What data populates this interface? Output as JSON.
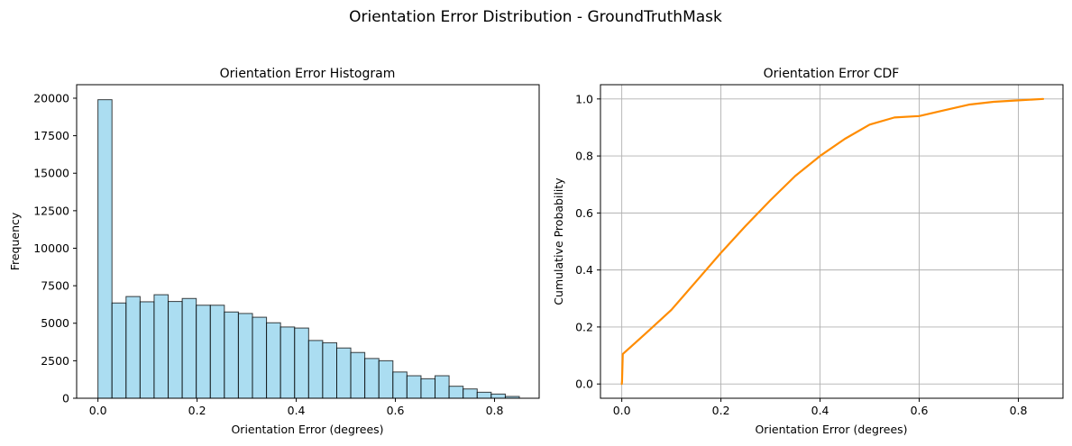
{
  "suptitle": "Orientation Error Distribution - GroundTruthMask",
  "chart_data": [
    {
      "type": "bar",
      "title": "Orientation Error Histogram",
      "xlabel": "Orientation Error (degrees)",
      "ylabel": "Frequency",
      "xlim": [
        -0.043,
        0.89
      ],
      "ylim": [
        0,
        20900
      ],
      "xticks": [
        0.0,
        0.2,
        0.4,
        0.6,
        0.8
      ],
      "xtick_labels": [
        "0.0",
        "0.2",
        "0.4",
        "0.6",
        "0.8"
      ],
      "yticks": [
        0,
        2500,
        5000,
        7500,
        10000,
        12500,
        15000,
        17500,
        20000
      ],
      "ytick_labels": [
        "0",
        "2500",
        "5000",
        "7500",
        "10000",
        "12500",
        "15000",
        "17500",
        "20000"
      ],
      "grid": false,
      "bar_color": "#87CEEB",
      "edge_color": "#000000",
      "bin_edges": [
        0.0,
        0.0283,
        0.0567,
        0.085,
        0.1133,
        0.1417,
        0.17,
        0.1983,
        0.2267,
        0.255,
        0.2833,
        0.3117,
        0.34,
        0.3683,
        0.3967,
        0.425,
        0.4533,
        0.4817,
        0.51,
        0.5383,
        0.5667,
        0.595,
        0.6233,
        0.6517,
        0.68,
        0.7083,
        0.7367,
        0.765,
        0.7933,
        0.8217,
        0.85
      ],
      "values": [
        19900,
        6350,
        6780,
        6430,
        6900,
        6450,
        6650,
        6200,
        6200,
        5750,
        5650,
        5400,
        5030,
        4750,
        4680,
        3850,
        3700,
        3350,
        3050,
        2650,
        2500,
        1750,
        1500,
        1300,
        1500,
        800,
        620,
        400,
        280,
        120
      ]
    },
    {
      "type": "line",
      "title": "Orientation Error CDF",
      "xlabel": "Orientation Error (degrees)",
      "ylabel": "Cumulative Probability",
      "xlim": [
        -0.043,
        0.89
      ],
      "ylim": [
        -0.05,
        1.05
      ],
      "xticks": [
        0.0,
        0.2,
        0.4,
        0.6,
        0.8
      ],
      "xtick_labels": [
        "0.0",
        "0.2",
        "0.4",
        "0.6",
        "0.8"
      ],
      "yticks": [
        0.0,
        0.2,
        0.4,
        0.6,
        0.8,
        1.0
      ],
      "ytick_labels": [
        "0.0",
        "0.2",
        "0.4",
        "0.6",
        "0.8",
        "1.0"
      ],
      "grid": true,
      "line_color": "#FF8C00",
      "x": [
        0.0,
        0.0005,
        0.002,
        0.05,
        0.1,
        0.15,
        0.2,
        0.25,
        0.3,
        0.35,
        0.4,
        0.45,
        0.5,
        0.55,
        0.6,
        0.65,
        0.7,
        0.75,
        0.8,
        0.85
      ],
      "y": [
        0.0,
        0.01,
        0.105,
        0.18,
        0.26,
        0.36,
        0.46,
        0.555,
        0.645,
        0.73,
        0.8,
        0.86,
        0.91,
        0.935,
        0.94,
        0.96,
        0.98,
        0.99,
        0.995,
        1.0
      ]
    }
  ]
}
